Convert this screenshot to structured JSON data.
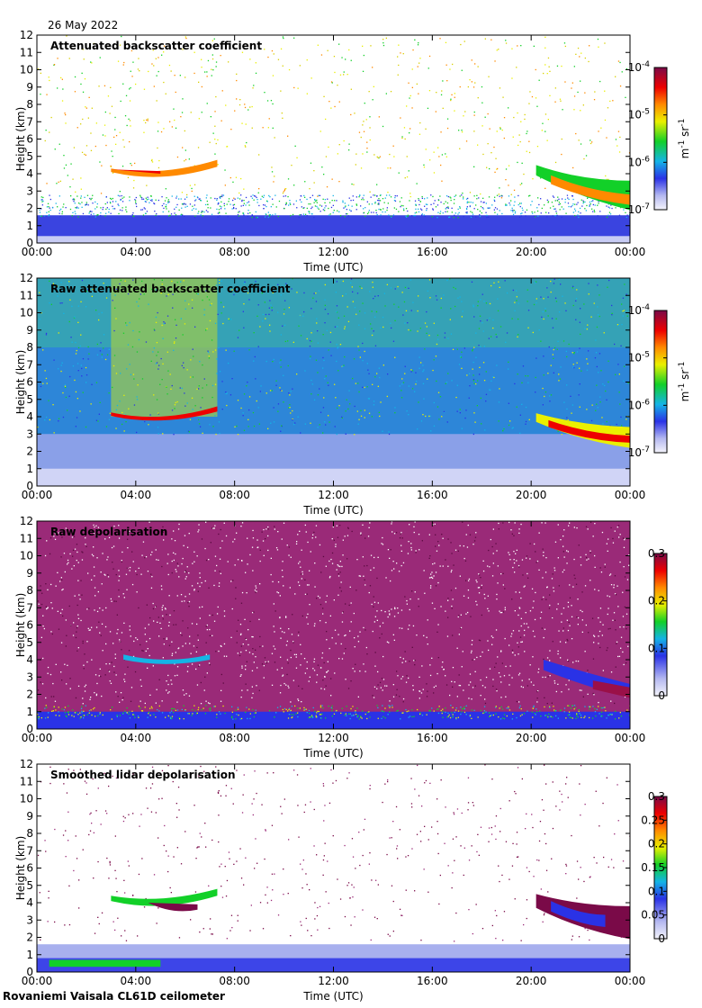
{
  "header": {
    "date": "26 May 2022"
  },
  "footer": {
    "site_instrument": "Rovaniemi Vaisala CL61D ceilometer"
  },
  "chart_data": [
    {
      "type": "heatmap",
      "title": "Attenuated backscatter coefficient",
      "xlabel": "Time (UTC)",
      "ylabel": "Height (km)",
      "x_ticks": [
        "00:00",
        "04:00",
        "08:00",
        "12:00",
        "16:00",
        "20:00",
        "00:00"
      ],
      "y_ticks": [
        "0",
        "1",
        "2",
        "3",
        "4",
        "5",
        "6",
        "7",
        "8",
        "9",
        "10",
        "11",
        "12"
      ],
      "ylim": [
        0,
        12
      ],
      "colorbar": {
        "scale": "log",
        "range": [
          1e-07,
          0.0001
        ],
        "ticks": [
          {
            "base": "10",
            "exp": "-4",
            "value": 0.0001
          },
          {
            "base": "10",
            "exp": "-5",
            "value": 1e-05
          },
          {
            "base": "10",
            "exp": "-6",
            "value": 1e-06
          },
          {
            "base": "10",
            "exp": "-7",
            "value": 1e-07
          }
        ],
        "unit": {
          "m": "m",
          "m_exp": "-1",
          "sr": "sr",
          "sr_exp": "-1"
        }
      }
    },
    {
      "type": "heatmap",
      "title": "Raw attenuated backscatter coefficient",
      "xlabel": "Time (UTC)",
      "ylabel": "Height (km)",
      "x_ticks": [
        "00:00",
        "04:00",
        "08:00",
        "12:00",
        "16:00",
        "20:00",
        "00:00"
      ],
      "y_ticks": [
        "0",
        "1",
        "2",
        "3",
        "4",
        "5",
        "6",
        "7",
        "8",
        "9",
        "10",
        "11",
        "12"
      ],
      "ylim": [
        0,
        12
      ],
      "colorbar": {
        "scale": "log",
        "range": [
          1e-07,
          0.0001
        ],
        "ticks": [
          {
            "base": "10",
            "exp": "-4",
            "value": 0.0001
          },
          {
            "base": "10",
            "exp": "-5",
            "value": 1e-05
          },
          {
            "base": "10",
            "exp": "-6",
            "value": 1e-06
          },
          {
            "base": "10",
            "exp": "-7",
            "value": 1e-07
          }
        ],
        "unit": {
          "m": "m",
          "m_exp": "-1",
          "sr": "sr",
          "sr_exp": "-1"
        }
      }
    },
    {
      "type": "heatmap",
      "title": "Raw depolarisation",
      "xlabel": "Time (UTC)",
      "ylabel": "Height (km)",
      "x_ticks": [
        "00:00",
        "04:00",
        "08:00",
        "12:00",
        "16:00",
        "20:00",
        "00:00"
      ],
      "y_ticks": [
        "0",
        "1",
        "2",
        "3",
        "4",
        "5",
        "6",
        "7",
        "8",
        "9",
        "10",
        "11",
        "12"
      ],
      "ylim": [
        0,
        12
      ],
      "colorbar": {
        "scale": "linear",
        "range": [
          0,
          0.3
        ],
        "ticks": [
          {
            "label": "0.3",
            "value": 0.3
          },
          {
            "label": "0.2",
            "value": 0.2
          },
          {
            "label": "0.1",
            "value": 0.1
          },
          {
            "label": "0",
            "value": 0
          }
        ]
      }
    },
    {
      "type": "heatmap",
      "title": "Smoothed lidar depolarisation",
      "xlabel": "Time (UTC)",
      "ylabel": "Height (km)",
      "x_ticks": [
        "00:00",
        "04:00",
        "08:00",
        "12:00",
        "16:00",
        "20:00",
        "00:00"
      ],
      "y_ticks": [
        "0",
        "1",
        "2",
        "3",
        "4",
        "5",
        "6",
        "7",
        "8",
        "9",
        "10",
        "11",
        "12"
      ],
      "ylim": [
        0,
        12
      ],
      "colorbar": {
        "scale": "linear",
        "range": [
          0,
          0.3
        ],
        "ticks": [
          {
            "label": "0.3",
            "value": 0.3
          },
          {
            "label": "0.25",
            "value": 0.25
          },
          {
            "label": "0.2",
            "value": 0.2
          },
          {
            "label": "0.15",
            "value": 0.15
          },
          {
            "label": "0.1",
            "value": 0.1
          },
          {
            "label": "0.05",
            "value": 0.05
          },
          {
            "label": "0",
            "value": 0
          }
        ]
      }
    }
  ]
}
